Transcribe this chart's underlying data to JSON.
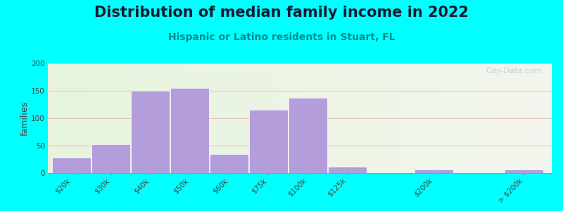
{
  "title": "Distribution of median family income in 2022",
  "subtitle": "Hispanic or Latino residents in Stuart, FL",
  "ylabel": "families",
  "background_outer": "#00FFFF",
  "bar_color": "#b39ddb",
  "bar_edge_color": "#ffffff",
  "categories": [
    "$20k",
    "$30k",
    "$40k",
    "$50k",
    "$60k",
    "$75k",
    "$100k",
    "$125k",
    "$200k",
    "> $200k"
  ],
  "values": [
    28,
    52,
    150,
    155,
    35,
    115,
    137,
    12,
    6,
    6
  ],
  "ylim": [
    0,
    200
  ],
  "yticks": [
    0,
    50,
    100,
    150,
    200
  ],
  "grid_color": "#ddaaaa",
  "watermark": "City-Data.com",
  "title_fontsize": 15,
  "subtitle_fontsize": 10,
  "ylabel_fontsize": 9,
  "tick_fontsize": 7.5,
  "title_color": "#1a1a2e",
  "subtitle_color": "#008888"
}
